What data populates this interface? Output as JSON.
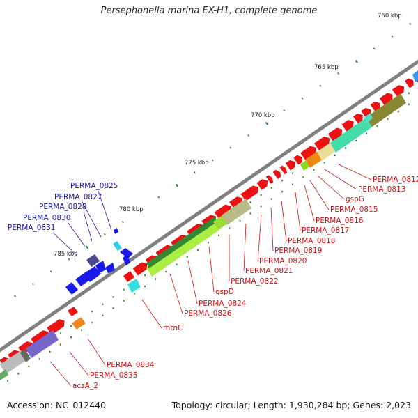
{
  "title": "Persephonella marina EX-H1, complete genome",
  "footer": {
    "accession": "Accession: NC_012440",
    "topology": "Topology: circular; Length: 1,930,284 bp; Genes: 2,023"
  },
  "ruler": {
    "ticks": [
      {
        "label": "760 kbp"
      },
      {
        "label": "765 kbp"
      },
      {
        "label": "770 kbp"
      },
      {
        "label": "775 kbp"
      },
      {
        "label": "780 kbp"
      },
      {
        "label": "785 kbp"
      }
    ]
  },
  "genes_red": [
    "PERMA_0812",
    "PERMA_0813",
    "gspG",
    "PERMA_0815",
    "PERMA_0816",
    "PERMA_0817",
    "PERMA_0818",
    "PERMA_0819",
    "PERMA_0820",
    "PERMA_0821",
    "PERMA_0822",
    "gspD",
    "PERMA_0824",
    "PERMA_0826",
    "mtnC",
    "PERMA_0834",
    "PERMA_0835",
    "acsA_2"
  ],
  "genes_blue": [
    "PERMA_0825",
    "PERMA_0827",
    "PERMA_0828",
    "PERMA_0830",
    "PERMA_0831"
  ],
  "colors": {
    "backbone": "#808080",
    "gene_red": "#ee1111",
    "gene_blue": "#1a1aee",
    "label_red": "#cc1111",
    "label_blue": "#1a1aaa",
    "tick": "#228822"
  }
}
